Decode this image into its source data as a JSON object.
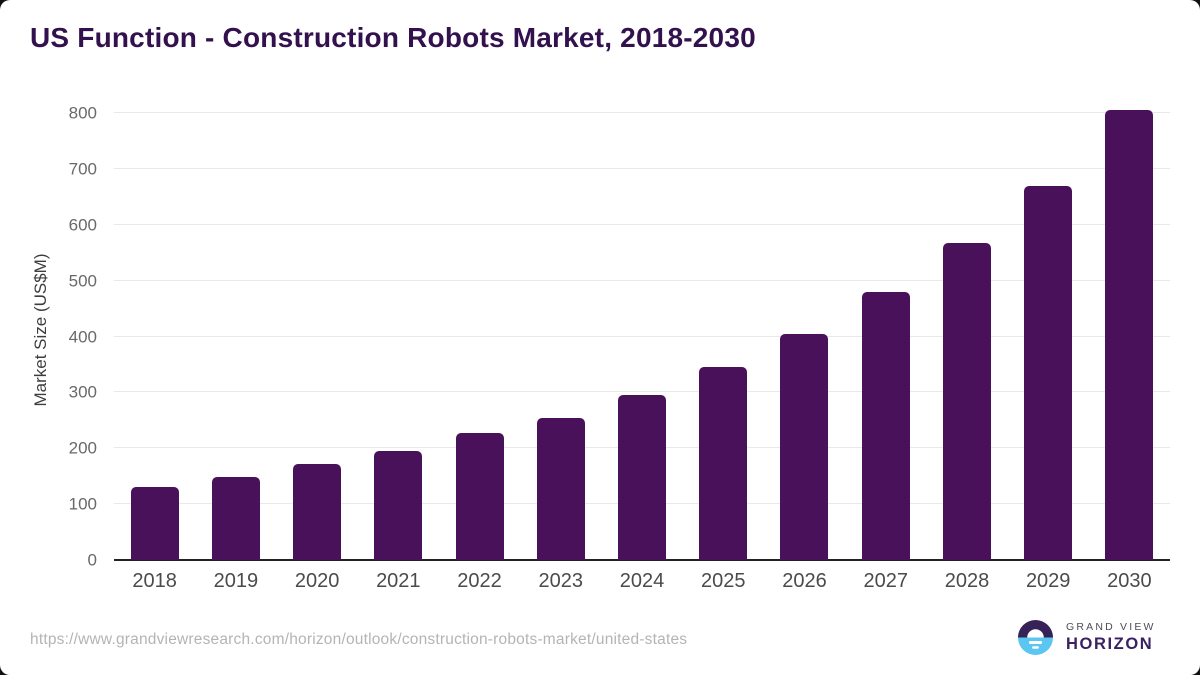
{
  "frame": {
    "background": "#ffffff",
    "outer_background": "#101010"
  },
  "chart_data": {
    "type": "bar",
    "title": "US Function - Construction Robots Market, 2018-2030",
    "title_color": "#32114e",
    "categories": [
      "2018",
      "2019",
      "2020",
      "2021",
      "2022",
      "2023",
      "2024",
      "2025",
      "2026",
      "2027",
      "2028",
      "2029",
      "2030"
    ],
    "values": [
      130,
      149,
      171,
      196,
      227,
      254,
      296,
      346,
      405,
      480,
      568,
      670,
      805
    ],
    "xlabel": "",
    "ylabel": "Market Size (US$M)",
    "ylim": [
      0,
      800
    ],
    "ytick_step": 100,
    "yticks": [
      0,
      100,
      200,
      300,
      400,
      500,
      600,
      700,
      800
    ],
    "grid": true,
    "gridline_color": "#e8e8e8",
    "axis_line_color": "#222222",
    "bar_color": "#48115a",
    "legend": "none"
  },
  "footer": {
    "source_url": "https://www.grandviewresearch.com/horizon/outlook/construction-robots-market/united-states",
    "logo": {
      "icon": "grand-view-horizon-sunset-icon",
      "icon_top_color": "#362257",
      "icon_bottom_color": "#5bc6f2",
      "brand_top": "GRAND VIEW",
      "brand_bottom": "HORIZON"
    }
  }
}
